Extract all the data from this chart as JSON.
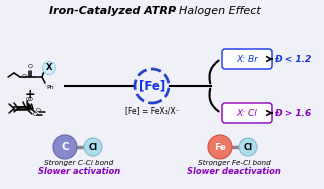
{
  "title_bold": "Iron-Catalyzed ATRP",
  "title_normal": " - Halogen Effect",
  "bg_color": "#f0f0f8",
  "fe_circle_edge_color": "#2244cc",
  "fe_text_color": "#1133ee",
  "br_label_color": "#1133ee",
  "cl_label_color": "#8800bb",
  "br_result": "Ð < 1.2",
  "cl_result": "Ð > 1.6",
  "x_br_label": "X: Br",
  "x_cl_label": "X: Cl",
  "fe_label": "[Fe]",
  "fe_eq": "[Fe] = FeX₃/X⁻",
  "bottom_left_atom1": "C",
  "bottom_left_atom2": "Cl",
  "bottom_right_atom1": "Fe",
  "bottom_right_atom2": "Cl",
  "bottom_left_line1": "Stronger C-Cl bond",
  "bottom_left_line2": "Slower activation",
  "bottom_right_line1": "Stronger Fe-Cl bond",
  "bottom_right_line2": "Slower deactivation",
  "atom_c_color": "#8888cc",
  "atom_cl_color": "#aaddee",
  "atom_fe_color": "#ee7766",
  "x_circle_color": "#cceeff",
  "bond_color": "#888888",
  "black": "#000000"
}
